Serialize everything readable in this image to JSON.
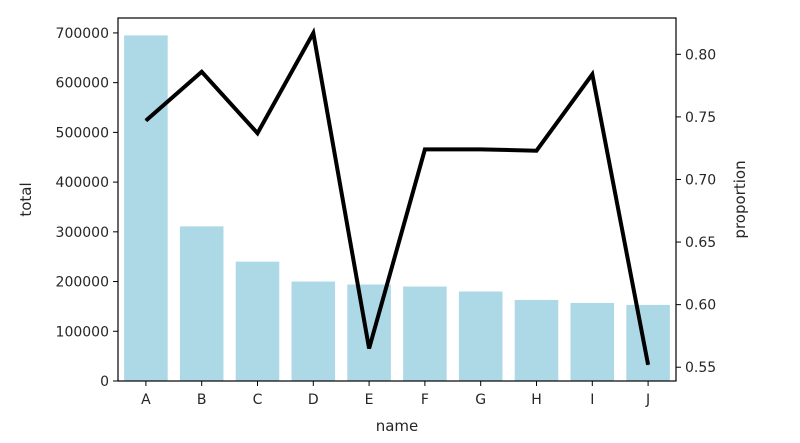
{
  "chart_data": {
    "type": "bar",
    "xlabel": "name",
    "ylabel": "total",
    "ylabel_right": "proportion",
    "categories": [
      "A",
      "B",
      "C",
      "D",
      "E",
      "F",
      "G",
      "H",
      "I",
      "J"
    ],
    "series": [
      {
        "type": "bar",
        "axis": "left",
        "values": [
          695000,
          311000,
          240000,
          200000,
          194000,
          190000,
          180000,
          163000,
          157000,
          153000
        ]
      },
      {
        "type": "line",
        "axis": "right",
        "values": [
          0.747,
          0.786,
          0.737,
          0.817,
          0.565,
          0.724,
          0.724,
          0.723,
          0.784,
          0.552
        ]
      }
    ],
    "ylim_left": [
      0,
      730000
    ],
    "ylim_right": [
      0.539,
      0.829
    ],
    "yticks_left": [
      "0",
      "100000",
      "200000",
      "300000",
      "400000",
      "500000",
      "600000",
      "700000"
    ],
    "yticks_right": [
      "0.55",
      "0.60",
      "0.65",
      "0.70",
      "0.75",
      "0.80"
    ],
    "grid": false,
    "colors": {
      "bar": "#add8e6",
      "line": "#000000",
      "axis": "#000000",
      "text": "#262626"
    }
  }
}
